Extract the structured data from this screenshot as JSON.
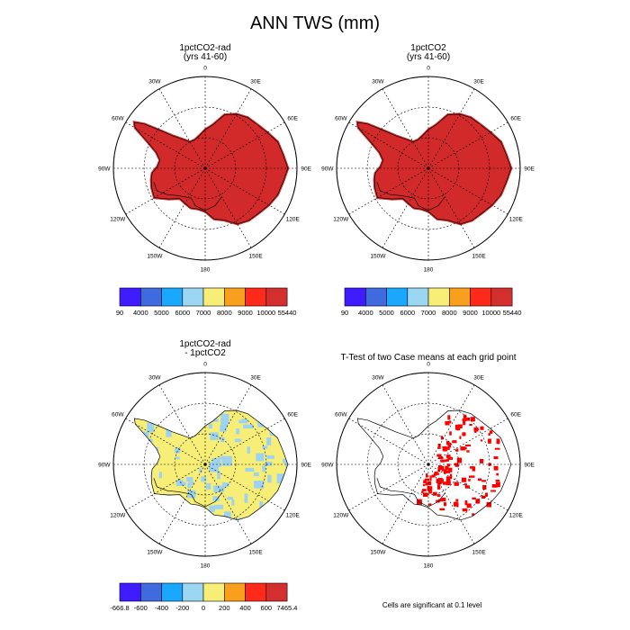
{
  "title": "ANN TWS (mm)",
  "colors": {
    "land_fill": "#d22a2a",
    "coast": "#000000",
    "significant": "#ff0000",
    "diff_pos": "#f7ee78",
    "diff_neg": "#9dd3f0"
  },
  "longitude_labels": [
    "0",
    "30E",
    "60E",
    "90E",
    "120E",
    "150E",
    "180",
    "150W",
    "120W",
    "90W",
    "60W",
    "30W"
  ],
  "chart_data": [
    {
      "type": "map",
      "projection": "south polar stereographic",
      "title_line1": "1pctCO2-rad",
      "title_line2": "(yrs 41-60)",
      "field": "ANN TWS",
      "units": "mm",
      "dominant_bin": "10000-55440",
      "colorbar": {
        "labels": [
          "90",
          "4000",
          "5000",
          "6000",
          "7000",
          "8000",
          "9000",
          "10000",
          "55440"
        ],
        "colors": [
          "#3f1bff",
          "#3f6ae0",
          "#1aa8ff",
          "#9bd6f2",
          "#f7ee78",
          "#f8a01e",
          "#ff2a1a",
          "#d32f2f"
        ]
      }
    },
    {
      "type": "map",
      "projection": "south polar stereographic",
      "title_line1": "1pctCO2",
      "title_line2": "(yrs 41-60)",
      "field": "ANN TWS",
      "units": "mm",
      "dominant_bin": "10000-55440",
      "colorbar": {
        "labels": [
          "90",
          "4000",
          "5000",
          "6000",
          "7000",
          "8000",
          "9000",
          "10000",
          "55440"
        ],
        "colors": [
          "#3f1bff",
          "#3f6ae0",
          "#1aa8ff",
          "#9bd6f2",
          "#f7ee78",
          "#f8a01e",
          "#ff2a1a",
          "#d32f2f"
        ]
      }
    },
    {
      "type": "map",
      "projection": "south polar stereographic",
      "title_line1": "1pctCO2-rad",
      "title_line2": "- 1pctCO2",
      "field": "ANN TWS difference",
      "units": "mm",
      "dominant_bins": [
        "0-200",
        "-200-0"
      ],
      "colorbar": {
        "labels": [
          "-666.8",
          "-600",
          "-400",
          "-200",
          "0",
          "200",
          "400",
          "600",
          "7465.4"
        ],
        "colors": [
          "#3f1bff",
          "#3f6ae0",
          "#1aa8ff",
          "#9bd6f2",
          "#f7ee78",
          "#f8a01e",
          "#ff2a1a",
          "#d32f2f"
        ]
      }
    },
    {
      "type": "map",
      "projection": "south polar stereographic",
      "title_line1": "T-Test of two Case means at each grid point",
      "note": "Cells are significant at 0.1 level",
      "significance_level": 0.1
    }
  ]
}
